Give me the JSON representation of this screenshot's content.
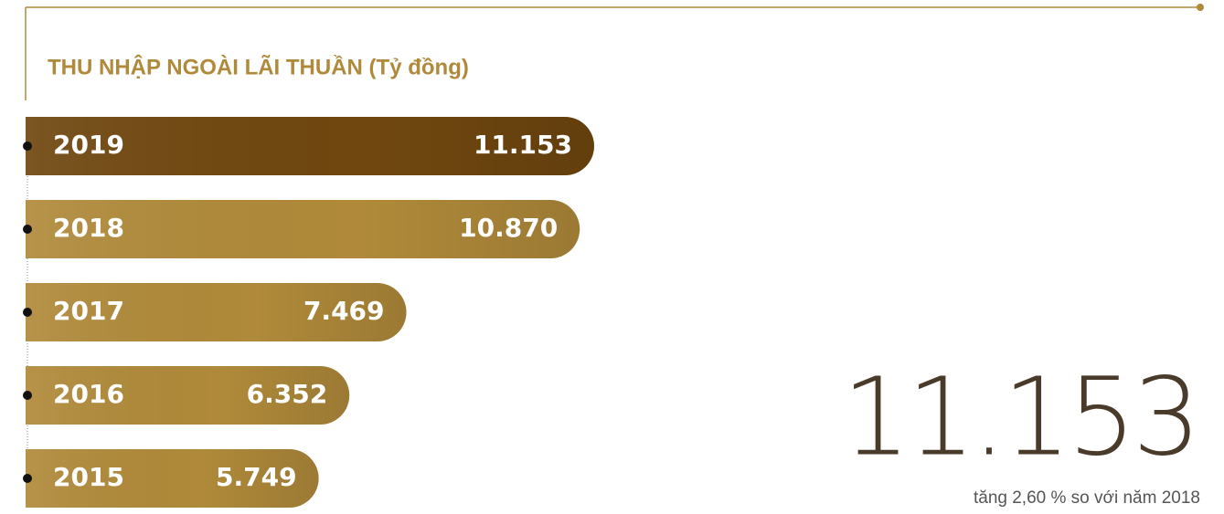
{
  "chart_data": {
    "type": "bar",
    "orientation": "horizontal",
    "title": "THU NHẬP NGOÀI LÃI THUẦN (Tỷ đồng)",
    "categories": [
      "2019",
      "2018",
      "2017",
      "2016",
      "2015"
    ],
    "values": [
      11153,
      10870,
      7469,
      6352,
      5749
    ],
    "value_labels": [
      "11.153",
      "10.870",
      "7.469",
      "6.352",
      "5.749"
    ],
    "colors": [
      "#70470f",
      "#b08a3a",
      "#b08a3a",
      "#b08a3a",
      "#b08a3a"
    ],
    "annotations": {
      "highlight": "11.153",
      "note": "tăng 2,60 % so với năm 2018"
    }
  }
}
